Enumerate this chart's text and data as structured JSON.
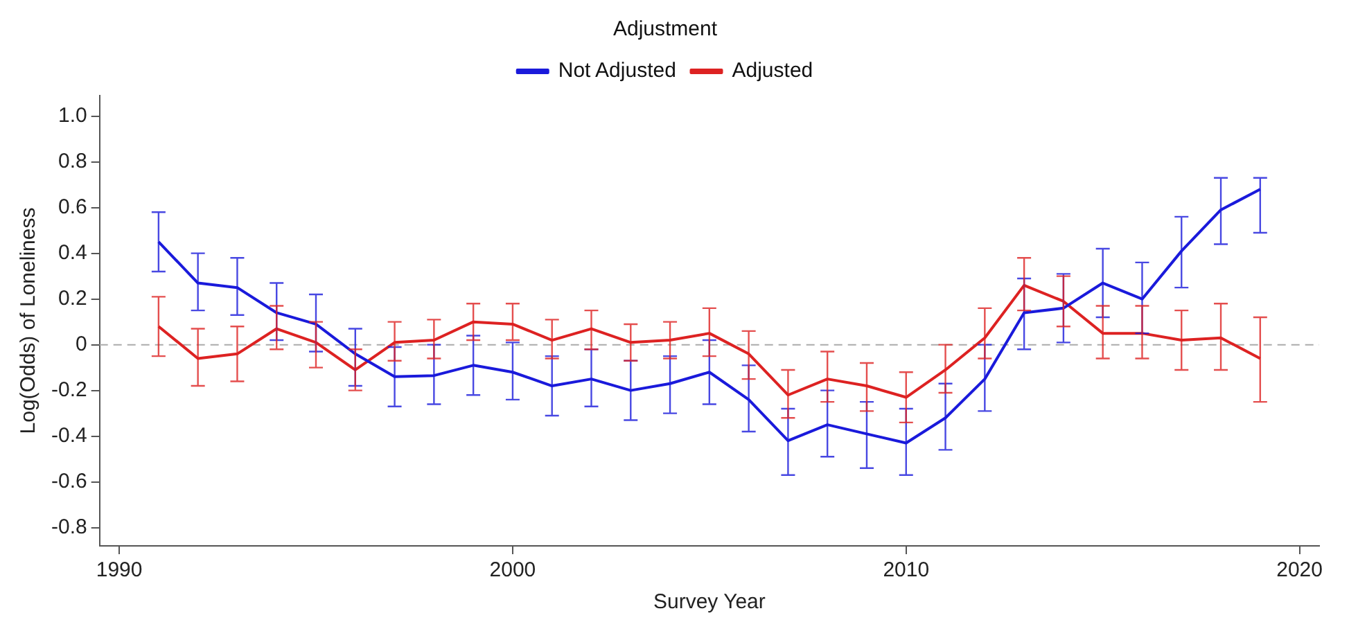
{
  "chart_data": {
    "type": "line",
    "xlabel": "Survey Year",
    "ylabel": "Log(Odds) of Loneliness",
    "legend_title": "Adjustment",
    "legend": "top",
    "grid": false,
    "marker": "none",
    "line_style": "solid",
    "x": [
      1991,
      1992,
      1993,
      1994,
      1995,
      1996,
      1997,
      1998,
      1999,
      2000,
      2001,
      2002,
      2003,
      2004,
      2005,
      2006,
      2007,
      2008,
      2009,
      2010,
      2011,
      2012,
      2013,
      2014,
      2015,
      2016,
      2017,
      2018,
      2019
    ],
    "xlim": [
      1989.5,
      2020.5
    ],
    "xticks": [
      1990,
      2000,
      2010,
      2020
    ],
    "ylim": [
      -0.88,
      1.09
    ],
    "yticks": [
      {
        "value": 1.0,
        "label": "1.0"
      },
      0.8,
      0.6,
      0.4,
      0.2,
      0,
      -0.2,
      -0.4,
      -0.6,
      -0.8
    ],
    "ref_lines": [
      {
        "axis": "y",
        "value": 0,
        "color": "#aaaaaa",
        "line_style": "dashed"
      }
    ],
    "series": [
      {
        "name": "Not Adjusted",
        "color": "#1a1adb",
        "values": [
          0.45,
          0.27,
          0.25,
          0.14,
          0.09,
          -0.04,
          -0.14,
          -0.135,
          -0.09,
          -0.12,
          -0.18,
          -0.15,
          -0.2,
          -0.17,
          -0.12,
          -0.24,
          -0.42,
          -0.35,
          -0.39,
          -0.43,
          -0.32,
          -0.15,
          0.14,
          0.16,
          0.27,
          0.2,
          0.41,
          0.59,
          0.68
        ],
        "errors": [
          [
            0.32,
            0.58
          ],
          [
            0.15,
            0.4
          ],
          [
            0.13,
            0.38
          ],
          [
            0.02,
            0.27
          ],
          [
            -0.03,
            0.22
          ],
          [
            -0.18,
            0.07
          ],
          [
            -0.27,
            -0.01
          ],
          [
            -0.26,
            0.0
          ],
          [
            -0.22,
            0.04
          ],
          [
            -0.24,
            0.01
          ],
          [
            -0.31,
            -0.05
          ],
          [
            -0.27,
            -0.02
          ],
          [
            -0.33,
            -0.07
          ],
          [
            -0.3,
            -0.05
          ],
          [
            -0.26,
            0.02
          ],
          [
            -0.38,
            -0.09
          ],
          [
            -0.57,
            -0.28
          ],
          [
            -0.49,
            -0.2
          ],
          [
            -0.54,
            -0.25
          ],
          [
            -0.57,
            -0.28
          ],
          [
            -0.46,
            -0.17
          ],
          [
            -0.29,
            0.0
          ],
          [
            -0.02,
            0.29
          ],
          [
            0.01,
            0.31
          ],
          [
            0.12,
            0.42
          ],
          [
            0.05,
            0.36
          ],
          [
            0.25,
            0.56
          ],
          [
            0.44,
            0.73
          ],
          [
            0.49,
            0.73
          ]
        ]
      },
      {
        "name": "Adjusted",
        "color": "#dd2222",
        "values": [
          0.08,
          -0.06,
          -0.04,
          0.07,
          0.01,
          -0.11,
          0.01,
          0.02,
          0.1,
          0.09,
          0.02,
          0.07,
          0.01,
          0.02,
          0.05,
          -0.04,
          -0.22,
          -0.15,
          -0.18,
          -0.23,
          -0.11,
          0.03,
          0.26,
          0.19,
          0.05,
          0.05,
          0.02,
          0.03,
          -0.06
        ],
        "errors": [
          [
            -0.05,
            0.21
          ],
          [
            -0.18,
            0.07
          ],
          [
            -0.16,
            0.08
          ],
          [
            -0.02,
            0.17
          ],
          [
            -0.1,
            0.1
          ],
          [
            -0.2,
            -0.02
          ],
          [
            -0.07,
            0.1
          ],
          [
            -0.06,
            0.11
          ],
          [
            0.02,
            0.18
          ],
          [
            0.02,
            0.18
          ],
          [
            -0.06,
            0.11
          ],
          [
            -0.02,
            0.15
          ],
          [
            -0.07,
            0.09
          ],
          [
            -0.06,
            0.1
          ],
          [
            -0.05,
            0.16
          ],
          [
            -0.15,
            0.06
          ],
          [
            -0.32,
            -0.11
          ],
          [
            -0.25,
            -0.03
          ],
          [
            -0.29,
            -0.08
          ],
          [
            -0.34,
            -0.12
          ],
          [
            -0.21,
            0.0
          ],
          [
            -0.06,
            0.16
          ],
          [
            0.15,
            0.38
          ],
          [
            0.08,
            0.3
          ],
          [
            -0.06,
            0.17
          ],
          [
            -0.06,
            0.17
          ],
          [
            -0.11,
            0.15
          ],
          [
            -0.11,
            0.18
          ],
          [
            -0.25,
            0.12
          ]
        ]
      }
    ]
  }
}
